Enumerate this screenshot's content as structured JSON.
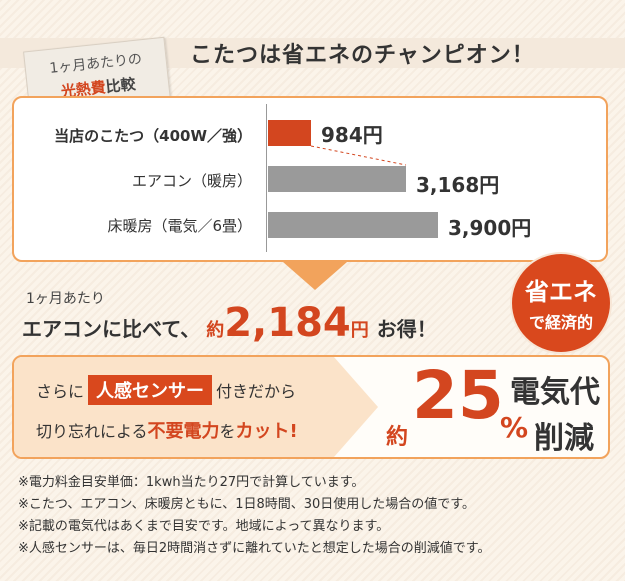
{
  "header": {
    "title": "こたつは省エネのチャンピオン！",
    "tag_line1": "1ヶ月あたりの",
    "tag_accent": "光熱費",
    "tag_rest": "比較"
  },
  "comparison": {
    "rows": [
      {
        "label": "当店のこたつ（400W／強）",
        "value_text": "984円",
        "value": 984,
        "color": "#d3461f"
      },
      {
        "label": "エアコン（暖房）",
        "value_text": "3,168円",
        "value": 3168,
        "color": "#9a9a9a"
      },
      {
        "label": "床暖房（電気／6畳）",
        "value_text": "3,900円",
        "value": 3900,
        "color": "#9a9a9a"
      }
    ]
  },
  "savings": {
    "month_label": "1ヶ月あたり",
    "prefix": "エアコンに比べて、",
    "approx": "約",
    "amount": "2,184",
    "unit": "円",
    "suffix": "お得！"
  },
  "badge": {
    "line1": "省エネ",
    "line2": "で経済的"
  },
  "sensor": {
    "pre": "さらに",
    "highlight": "人感センサー",
    "post": "付きだから",
    "line2_pre": "切り忘れによる",
    "line2_red1": "不要電力",
    "line2_mid": "を",
    "line2_red2": "カット!",
    "approx": "約",
    "percent": "25",
    "percent_sign": "%",
    "label1": "電気代",
    "label2": "削減"
  },
  "notes": [
    "※電力料金目安単価：1kwh当たり27円で計算しています。",
    "※こたつ、エアコン、床暖房ともに、1日8時間、30日使用した場合の値です。",
    "※記載の電気代はあくまで目安です。地域によって異なります。",
    "※人感センサーは、毎日2時間消さずに離れていたと想定した場合の削減値です。"
  ],
  "colors": {
    "accent": "#d3461f",
    "orange_border": "#f2a35c",
    "bar_gray": "#9a9a9a"
  }
}
